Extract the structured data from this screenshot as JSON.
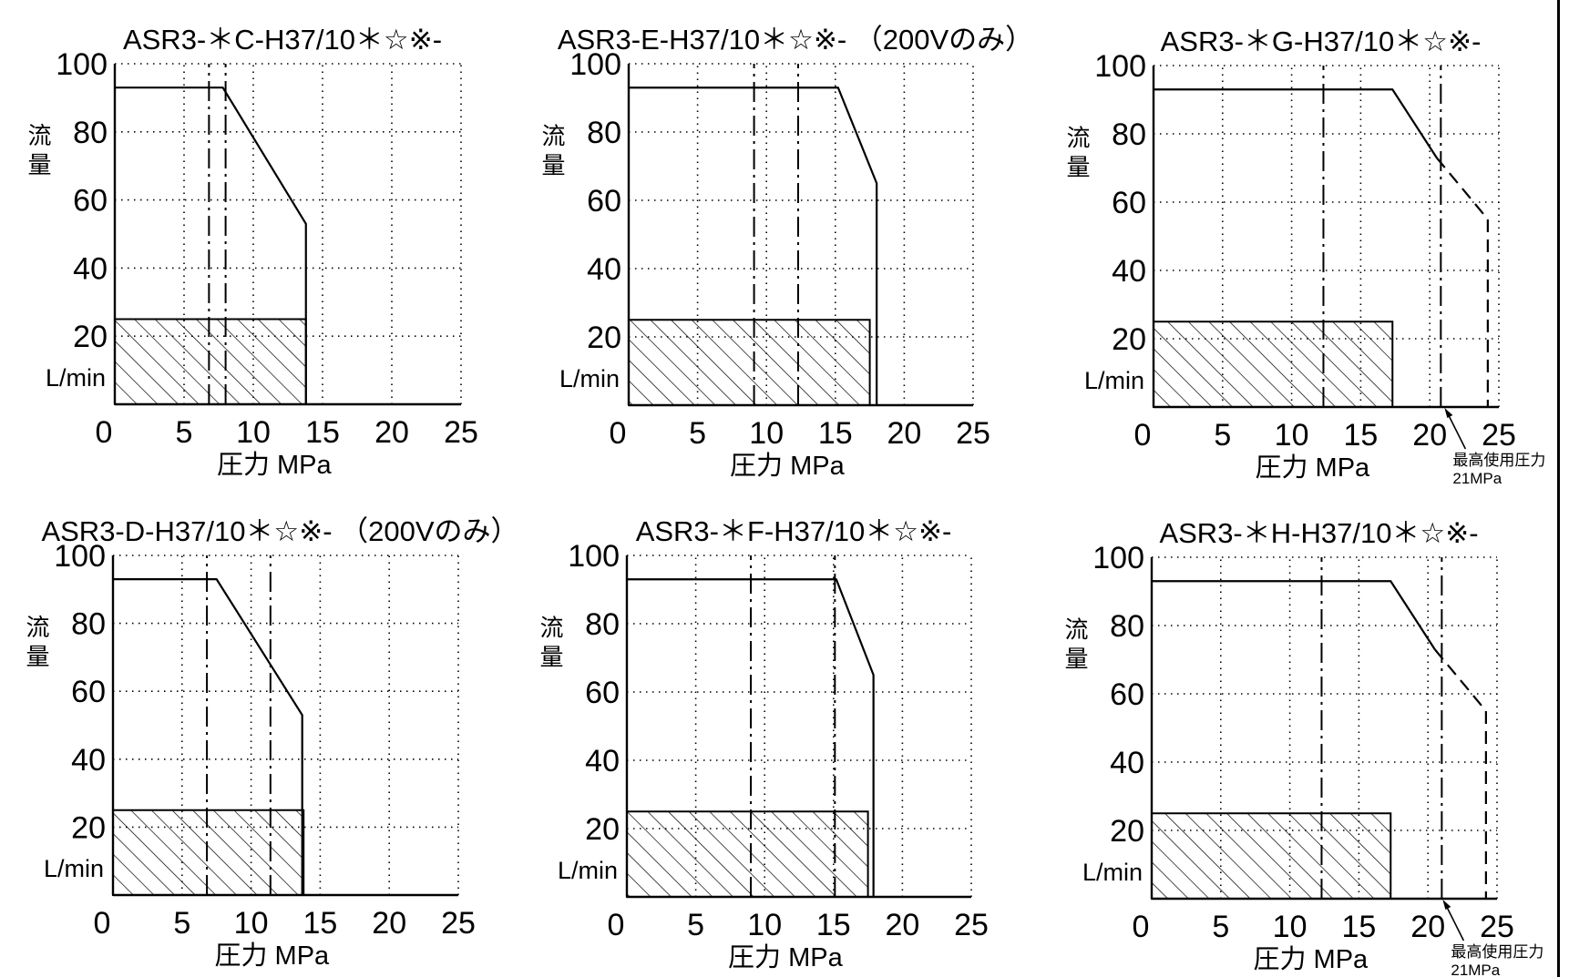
{
  "chart_data": [
    {
      "type": "line",
      "title": "ASR3-＊C-H37/10＊☆※-",
      "ylabel": "流量",
      "yunit": "L/min",
      "xlabel": "圧力 MPa",
      "xlim": [
        0,
        25
      ],
      "ylim": [
        0,
        100
      ],
      "xticks": [
        0,
        5,
        10,
        15,
        20,
        25
      ],
      "yticks": [
        20,
        40,
        60,
        80,
        100
      ],
      "grid": true,
      "series": [
        {
          "style": "solid",
          "x": [
            0,
            7.8,
            13.8,
            13.8
          ],
          "y": [
            93,
            93,
            53,
            0
          ]
        }
      ],
      "vlines": [
        {
          "x": 6.8,
          "style": "dashdot"
        },
        {
          "x": 8.0,
          "style": "dashdot"
        }
      ],
      "hatched_region": {
        "x": [
          0,
          13.8
        ],
        "y": [
          0,
          25
        ]
      }
    },
    {
      "type": "line",
      "title": "ASR3-E-H37/10＊☆※- （200Vのみ）",
      "ylabel": "流量",
      "yunit": "L/min",
      "xlabel": "圧力 MPa",
      "xlim": [
        0,
        25
      ],
      "ylim": [
        0,
        100
      ],
      "xticks": [
        0,
        5,
        10,
        15,
        20,
        25
      ],
      "yticks": [
        20,
        40,
        60,
        80,
        100
      ],
      "grid": true,
      "series": [
        {
          "style": "solid",
          "x": [
            0,
            15.2,
            18.0,
            18.0
          ],
          "y": [
            93,
            93,
            65,
            0
          ]
        }
      ],
      "vlines": [
        {
          "x": 9.1,
          "style": "dashdot"
        },
        {
          "x": 12.3,
          "style": "dashdot"
        }
      ],
      "hatched_region": {
        "x": [
          0,
          17.5
        ],
        "y": [
          0,
          25
        ]
      }
    },
    {
      "type": "line",
      "title": "ASR3-＊G-H37/10＊☆※-",
      "ylabel": "流量",
      "yunit": "L/min",
      "xlabel": "圧力 MPa",
      "xlim": [
        0,
        25
      ],
      "ylim": [
        0,
        100
      ],
      "xticks": [
        0,
        5,
        10,
        15,
        20,
        25
      ],
      "yticks": [
        20,
        40,
        60,
        80,
        100
      ],
      "grid": true,
      "series": [
        {
          "style": "solid",
          "x": [
            0,
            17.3,
            20.5
          ],
          "y": [
            93,
            93,
            73
          ]
        },
        {
          "style": "dashed",
          "x": [
            20.5,
            24.2,
            24.2
          ],
          "y": [
            73,
            55,
            0
          ]
        }
      ],
      "vlines": [
        {
          "x": 12.3,
          "style": "dashdot"
        },
        {
          "x": 20.8,
          "style": "dashdot"
        }
      ],
      "hatched_region": {
        "x": [
          0,
          17.3
        ],
        "y": [
          0,
          25
        ]
      },
      "annotation": {
        "lines": [
          "最高使用圧力",
          "21MPa"
        ],
        "x": 21
      }
    },
    {
      "type": "line",
      "title": "ASR3-D-H37/10＊☆※- （200Vのみ）",
      "ylabel": "流量",
      "yunit": "L/min",
      "xlabel": "圧力 MPa",
      "xlim": [
        0,
        25
      ],
      "ylim": [
        0,
        100
      ],
      "xticks": [
        0,
        5,
        10,
        15,
        20,
        25
      ],
      "yticks": [
        20,
        40,
        60,
        80,
        100
      ],
      "grid": true,
      "series": [
        {
          "style": "solid",
          "x": [
            0,
            7.5,
            13.7,
            13.7
          ],
          "y": [
            93,
            93,
            53,
            0
          ]
        }
      ],
      "vlines": [
        {
          "x": 6.8,
          "style": "dashdot"
        },
        {
          "x": 11.4,
          "style": "dashdot"
        }
      ],
      "hatched_region": {
        "x": [
          0,
          13.8
        ],
        "y": [
          0,
          25
        ]
      }
    },
    {
      "type": "line",
      "title": "ASR3-＊F-H37/10＊☆※-",
      "ylabel": "流量",
      "yunit": "L/min",
      "xlabel": "圧力 MPa",
      "xlim": [
        0,
        25
      ],
      "ylim": [
        0,
        100
      ],
      "xticks": [
        0,
        5,
        10,
        15,
        20,
        25
      ],
      "yticks": [
        20,
        40,
        60,
        80,
        100
      ],
      "grid": true,
      "series": [
        {
          "style": "solid",
          "x": [
            0,
            15.2,
            17.9,
            17.9
          ],
          "y": [
            93,
            93,
            65,
            0
          ]
        }
      ],
      "vlines": [
        {
          "x": 9.0,
          "style": "dashdot"
        },
        {
          "x": 15.1,
          "style": "dashdot"
        }
      ],
      "hatched_region": {
        "x": [
          0,
          17.5
        ],
        "y": [
          0,
          25
        ]
      }
    },
    {
      "type": "line",
      "title": "ASR3-＊H-H37/10＊☆※-",
      "ylabel": "流量",
      "yunit": "L/min",
      "xlabel": "圧力 MPa",
      "xlim": [
        0,
        25
      ],
      "ylim": [
        0,
        100
      ],
      "xticks": [
        0,
        5,
        10,
        15,
        20,
        25
      ],
      "yticks": [
        20,
        40,
        60,
        80,
        100
      ],
      "grid": true,
      "series": [
        {
          "style": "solid",
          "x": [
            0,
            17.3,
            20.5
          ],
          "y": [
            93,
            93,
            73
          ]
        },
        {
          "style": "dashed",
          "x": [
            20.5,
            24.2,
            24.2
          ],
          "y": [
            73,
            55,
            0
          ]
        }
      ],
      "vlines": [
        {
          "x": 12.3,
          "style": "dashdot"
        },
        {
          "x": 21.0,
          "style": "dashdot"
        }
      ],
      "hatched_region": {
        "x": [
          0,
          17.3
        ],
        "y": [
          0,
          25
        ]
      },
      "annotation": {
        "lines": [
          "最高使用圧力",
          "21MPa"
        ],
        "x": 21
      }
    }
  ]
}
